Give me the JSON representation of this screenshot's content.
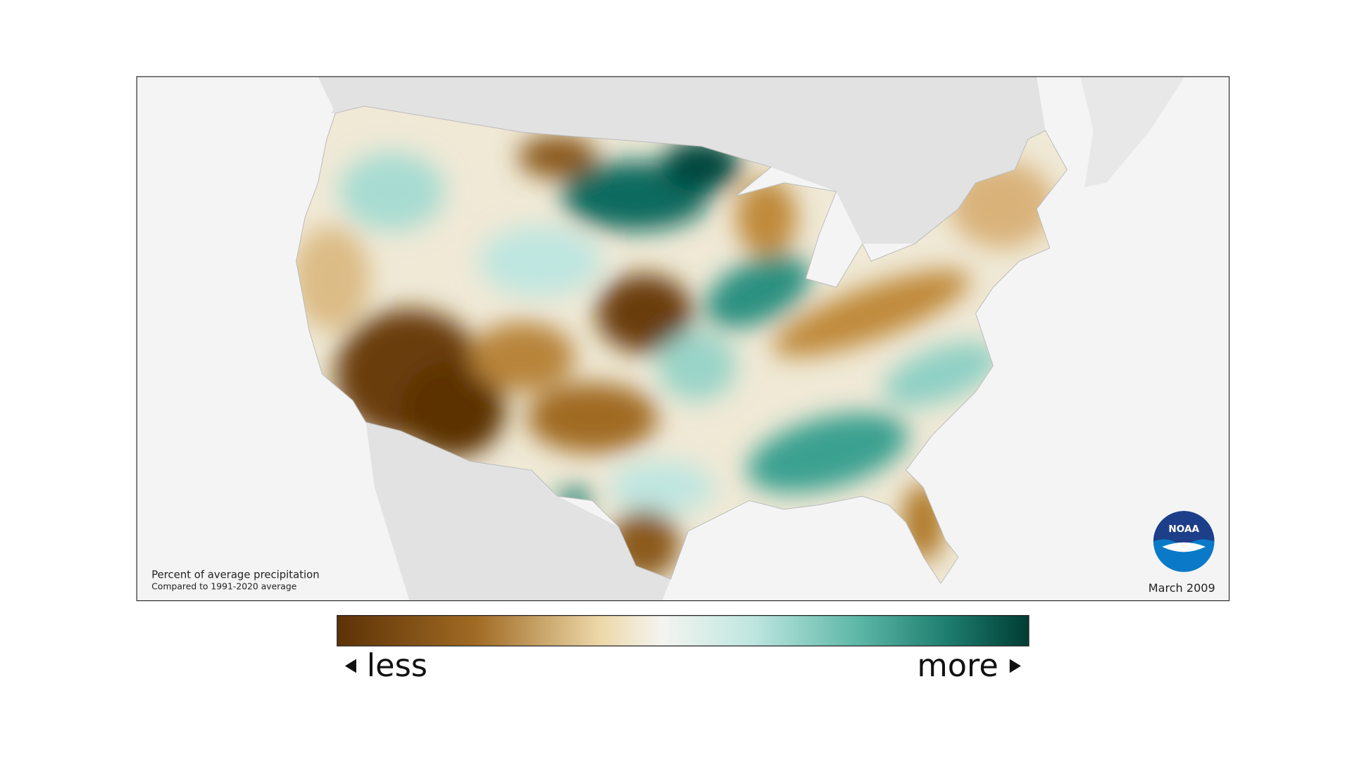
{
  "map": {
    "title": "Percent of average precipitation",
    "subtitle": "Compared to 1991-2020 average",
    "date": "March 2009",
    "logo": "NOAA"
  },
  "legend": {
    "low": "less",
    "high": "more"
  }
}
